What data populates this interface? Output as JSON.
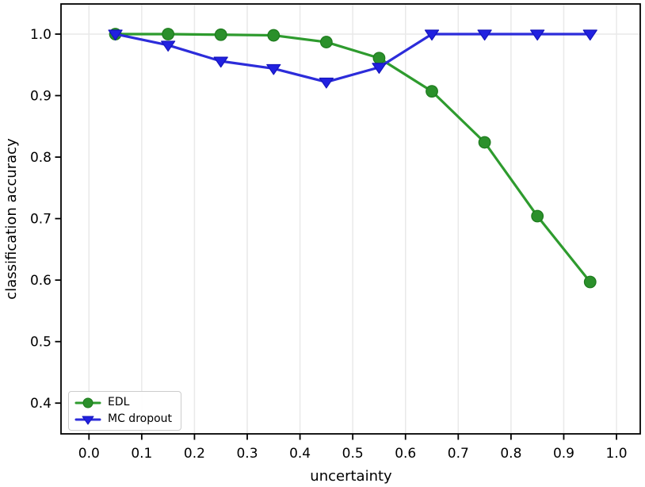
{
  "figure": {
    "background_color": "#ffffff",
    "spine_color": "#000000",
    "text_color": "#000000"
  },
  "chart_data": {
    "type": "line",
    "title": "",
    "xlabel": "uncertainty",
    "ylabel": "classification accuracy",
    "xlim": [
      -0.053,
      1.045
    ],
    "ylim": [
      0.35,
      1.049
    ],
    "x_tick_labels": [
      "0.0",
      "0.1",
      "0.2",
      "0.3",
      "0.4",
      "0.5",
      "0.6",
      "0.7",
      "0.8",
      "0.9",
      "1.0"
    ],
    "y_tick_labels": [
      "0.4",
      "0.5",
      "0.6",
      "0.7",
      "0.8",
      "0.9",
      "1.0"
    ],
    "grid": {
      "vertical_at_x_ticks": true,
      "horizontal_at": [
        1.0
      ],
      "color": "#e9e9e9"
    },
    "x": [
      0.05,
      0.15,
      0.25,
      0.35,
      0.45,
      0.55,
      0.65,
      0.75,
      0.85,
      0.95
    ],
    "series": [
      {
        "name": "EDL",
        "marker": "circle",
        "color": "#2e9b2e",
        "marker_fill": "#2b902b",
        "marker_edge": "#1c7a1c",
        "values": [
          1.0,
          1.0,
          0.999,
          0.998,
          0.987,
          0.961,
          0.907,
          0.824,
          0.704,
          0.597
        ]
      },
      {
        "name": "MC dropout",
        "marker": "triangle-down",
        "color": "#2c2cda",
        "marker_fill": "#2121e0",
        "marker_edge": "#1515bd",
        "values": [
          1.0,
          0.982,
          0.956,
          0.944,
          0.922,
          0.946,
          1.0,
          1.0,
          1.0,
          1.0
        ]
      }
    ],
    "legend": {
      "position": "lower left",
      "entries": [
        "EDL",
        "MC dropout"
      ]
    }
  }
}
